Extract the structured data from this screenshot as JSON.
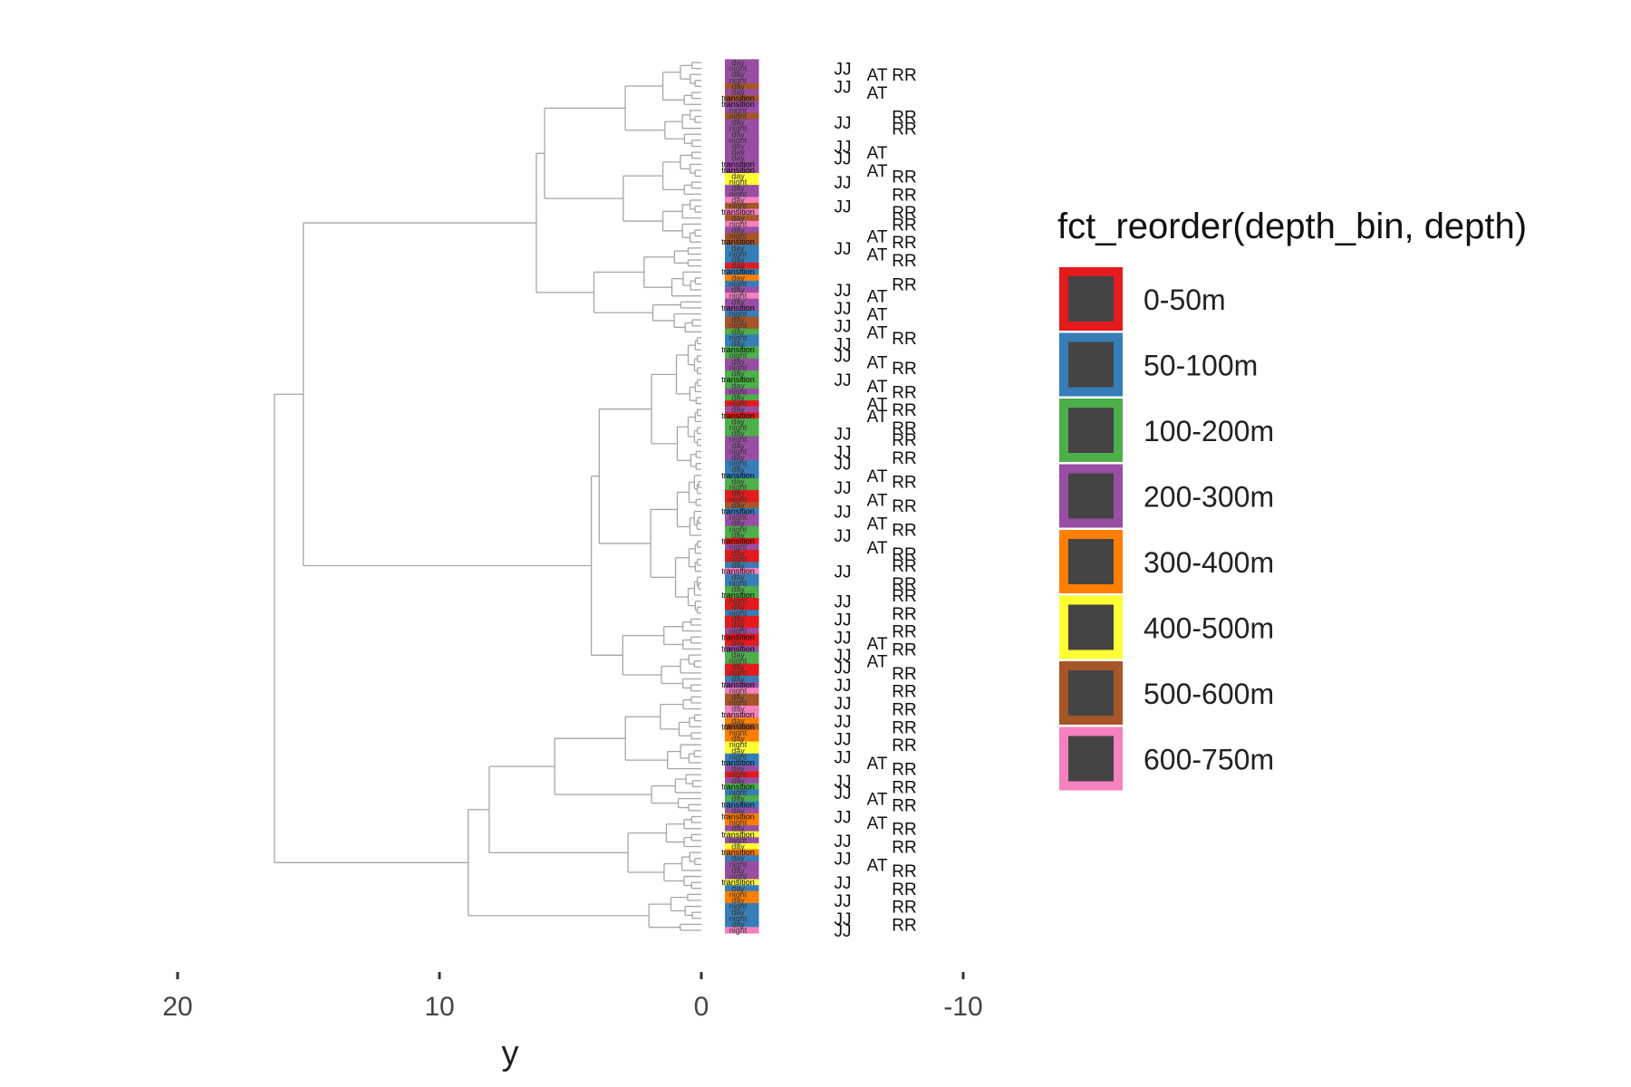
{
  "chart_data": {
    "type": "dendrogram",
    "title": "",
    "xlabel": "y",
    "ylabel": "",
    "xlim": [
      22,
      -11
    ],
    "x_reversed": true,
    "x_ticks": [
      20,
      10,
      0,
      -10
    ],
    "x_tick_labels": [
      "20",
      "10",
      "0",
      "-10"
    ],
    "grid": false,
    "legend": {
      "title": "fct_reorder(depth_bin, depth)",
      "placement": "right",
      "entries": [
        {
          "label": "0-50m",
          "color": "#E41A1C"
        },
        {
          "label": "50-100m",
          "color": "#377EB8"
        },
        {
          "label": "100-200m",
          "color": "#4DAF4A"
        },
        {
          "label": "200-300m",
          "color": "#984EA3"
        },
        {
          "label": "300-400m",
          "color": "#FF7F00"
        },
        {
          "label": "400-500m",
          "color": "#FFFF33"
        },
        {
          "label": "500-600m",
          "color": "#A65628"
        },
        {
          "label": "600-750m",
          "color": "#F781BF"
        }
      ],
      "fill_color": "#444444"
    },
    "branch_color": "#a6a6a6",
    "leaf_count": 146,
    "merge_heights": {
      "root": 16.3,
      "upper": 15.2,
      "top_cluster": 6.3,
      "mid_cluster": 4.0,
      "lower": 8.9,
      "lower_a": 8.1,
      "lower_b": 5.6
    },
    "leaf_depth_bins": [
      "200-300m",
      "200-300m",
      "200-300m",
      "200-300m",
      "500-600m",
      "200-300m",
      "500-600m",
      "200-300m",
      "200-300m",
      "500-600m",
      "200-300m",
      "200-300m",
      "200-300m",
      "200-300m",
      "200-300m",
      "200-300m",
      "200-300m",
      "200-300m",
      "200-300m",
      "400-500m",
      "400-500m",
      "200-300m",
      "200-300m",
      "600-750m",
      "500-600m",
      "600-750m",
      "500-600m",
      "600-750m",
      "200-300m",
      "500-600m",
      "500-600m",
      "50-100m",
      "50-100m",
      "50-100m",
      "0-50m",
      "50-100m",
      "300-400m",
      "50-100m",
      "200-300m",
      "600-750m",
      "200-300m",
      "200-300m",
      "50-100m",
      "500-600m",
      "500-600m",
      "100-200m",
      "50-100m",
      "50-100m",
      "100-200m",
      "100-200m",
      "200-300m",
      "200-300m",
      "100-200m",
      "100-200m",
      "100-200m",
      "200-300m",
      "100-200m",
      "0-50m",
      "200-300m",
      "0-50m",
      "100-200m",
      "100-200m",
      "100-200m",
      "200-300m",
      "200-300m",
      "200-300m",
      "200-300m",
      "50-100m",
      "50-100m",
      "50-100m",
      "100-200m",
      "100-200m",
      "0-50m",
      "0-50m",
      "500-600m",
      "50-100m",
      "200-300m",
      "200-300m",
      "100-200m",
      "100-200m",
      "0-50m",
      "200-300m",
      "0-50m",
      "0-50m",
      "50-100m",
      "600-750m",
      "50-100m",
      "50-100m",
      "100-200m",
      "100-200m",
      "0-50m",
      "0-50m",
      "50-100m",
      "0-50m",
      "0-50m",
      "200-300m",
      "0-50m",
      "0-50m",
      "200-300m",
      "100-200m",
      "100-200m",
      "0-50m",
      "0-50m",
      "50-100m",
      "200-300m",
      "600-750m",
      "500-600m",
      "500-600m",
      "600-750m",
      "600-750m",
      "300-400m",
      "500-600m",
      "300-400m",
      "300-400m",
      "400-500m",
      "400-500m",
      "50-100m",
      "50-100m",
      "200-300m",
      "0-50m",
      "200-300m",
      "100-200m",
      "50-100m",
      "100-200m",
      "50-100m",
      "200-300m",
      "300-400m",
      "300-400m",
      "200-300m",
      "400-500m",
      "200-300m",
      "400-500m",
      "300-400m",
      "50-100m",
      "200-300m",
      "200-300m",
      "200-300m",
      "400-500m",
      "50-100m",
      "300-400m",
      "300-400m",
      "50-100m",
      "50-100m",
      "50-100m",
      "50-100m",
      "600-750m"
    ],
    "leaf_time_labels": [
      "day",
      "night",
      "day",
      "night",
      "day",
      "day",
      "transition",
      "transition",
      "night",
      "night",
      "day",
      "night",
      "day",
      "night",
      "day",
      "day",
      "day",
      "transition",
      "transition",
      "day",
      "night",
      "day",
      "night",
      "day",
      "night",
      "transition",
      "day",
      "night",
      "day",
      "night",
      "transition",
      "day",
      "night",
      "day",
      "day",
      "transition",
      "day",
      "night",
      "day",
      "night",
      "day",
      "transition",
      "night",
      "day",
      "night",
      "day",
      "night",
      "day",
      "transition",
      "night",
      "day",
      "night",
      "day",
      "transition",
      "day",
      "night",
      "day",
      "night",
      "day",
      "transition",
      "day",
      "night",
      "day",
      "night",
      "day",
      "night",
      "day",
      "night",
      "day",
      "transition",
      "day",
      "night",
      "day",
      "night",
      "day",
      "transition",
      "night",
      "day",
      "night",
      "day",
      "transition",
      "night",
      "day",
      "night",
      "day",
      "transition",
      "day",
      "night",
      "day",
      "transition",
      "night",
      "day",
      "night",
      "day",
      "day",
      "night",
      "transition",
      "day",
      "transition",
      "day",
      "night",
      "day",
      "night",
      "day",
      "transition",
      "night",
      "day",
      "night",
      "day",
      "transition",
      "day",
      "transition",
      "night",
      "day",
      "night",
      "day",
      "night",
      "transition",
      "day",
      "night",
      "day",
      "transition",
      "night",
      "day",
      "transition",
      "day",
      "transition",
      "night",
      "day",
      "transition",
      "night",
      "day",
      "transition",
      "day",
      "night",
      "day",
      "night",
      "transition",
      "day",
      "night",
      "day",
      "night",
      "day",
      "night",
      "day",
      "night"
    ],
    "initials_annotations": [
      {
        "row": 1,
        "text": "JJ",
        "col": 0
      },
      {
        "row": 2,
        "text": "AT",
        "col": 1
      },
      {
        "row": 2,
        "text": "RR",
        "col": 2
      },
      {
        "row": 4,
        "text": "JJ",
        "col": 0
      },
      {
        "row": 5,
        "text": "AT",
        "col": 1
      },
      {
        "row": 9,
        "text": "RR",
        "col": 2
      },
      {
        "row": 10,
        "text": "JJ",
        "col": 0
      },
      {
        "row": 11,
        "text": "RR",
        "col": 2
      },
      {
        "row": 14,
        "text": "JJ",
        "col": 0
      },
      {
        "row": 15,
        "text": "AT",
        "col": 1
      },
      {
        "row": 16,
        "text": "JJ",
        "col": 0
      },
      {
        "row": 18,
        "text": "AT",
        "col": 1
      },
      {
        "row": 19,
        "text": "RR",
        "col": 2
      },
      {
        "row": 20,
        "text": "JJ",
        "col": 0
      },
      {
        "row": 22,
        "text": "RR",
        "col": 2
      },
      {
        "row": 24,
        "text": "JJ",
        "col": 0
      },
      {
        "row": 25,
        "text": "RR",
        "col": 2
      },
      {
        "row": 27,
        "text": "RR",
        "col": 2
      },
      {
        "row": 29,
        "text": "AT",
        "col": 1
      },
      {
        "row": 30,
        "text": "RR",
        "col": 2
      },
      {
        "row": 31,
        "text": "JJ",
        "col": 0
      },
      {
        "row": 32,
        "text": "AT",
        "col": 1
      },
      {
        "row": 33,
        "text": "RR",
        "col": 2
      },
      {
        "row": 37,
        "text": "RR",
        "col": 2
      },
      {
        "row": 38,
        "text": "JJ",
        "col": 0
      },
      {
        "row": 39,
        "text": "AT",
        "col": 1
      },
      {
        "row": 41,
        "text": "JJ",
        "col": 0
      },
      {
        "row": 42,
        "text": "AT",
        "col": 1
      },
      {
        "row": 44,
        "text": "JJ",
        "col": 0
      },
      {
        "row": 45,
        "text": "AT",
        "col": 1
      },
      {
        "row": 46,
        "text": "RR",
        "col": 2
      },
      {
        "row": 47,
        "text": "JJ",
        "col": 0
      },
      {
        "row": 49,
        "text": "JJ",
        "col": 0
      },
      {
        "row": 50,
        "text": "AT",
        "col": 1
      },
      {
        "row": 51,
        "text": "RR",
        "col": 2
      },
      {
        "row": 53,
        "text": "JJ",
        "col": 0
      },
      {
        "row": 54,
        "text": "AT",
        "col": 1
      },
      {
        "row": 55,
        "text": "RR",
        "col": 2
      },
      {
        "row": 57,
        "text": "AT",
        "col": 1
      },
      {
        "row": 58,
        "text": "RR",
        "col": 2
      },
      {
        "row": 59,
        "text": "AT",
        "col": 1
      },
      {
        "row": 61,
        "text": "RR",
        "col": 2
      },
      {
        "row": 62,
        "text": "JJ",
        "col": 0
      },
      {
        "row": 63,
        "text": "RR",
        "col": 2
      },
      {
        "row": 65,
        "text": "JJ",
        "col": 0
      },
      {
        "row": 66,
        "text": "RR",
        "col": 2
      },
      {
        "row": 67,
        "text": "JJ",
        "col": 0
      },
      {
        "row": 69,
        "text": "AT",
        "col": 1
      },
      {
        "row": 70,
        "text": "RR",
        "col": 2
      },
      {
        "row": 71,
        "text": "JJ",
        "col": 0
      },
      {
        "row": 73,
        "text": "AT",
        "col": 1
      },
      {
        "row": 74,
        "text": "RR",
        "col": 2
      },
      {
        "row": 75,
        "text": "JJ",
        "col": 0
      },
      {
        "row": 77,
        "text": "AT",
        "col": 1
      },
      {
        "row": 78,
        "text": "RR",
        "col": 2
      },
      {
        "row": 79,
        "text": "JJ",
        "col": 0
      },
      {
        "row": 81,
        "text": "AT",
        "col": 1
      },
      {
        "row": 82,
        "text": "RR",
        "col": 2
      },
      {
        "row": 84,
        "text": "RR",
        "col": 2
      },
      {
        "row": 85,
        "text": "JJ",
        "col": 0
      },
      {
        "row": 87,
        "text": "RR",
        "col": 2
      },
      {
        "row": 89,
        "text": "RR",
        "col": 2
      },
      {
        "row": 90,
        "text": "JJ",
        "col": 0
      },
      {
        "row": 92,
        "text": "RR",
        "col": 2
      },
      {
        "row": 93,
        "text": "JJ",
        "col": 0
      },
      {
        "row": 95,
        "text": "RR",
        "col": 2
      },
      {
        "row": 96,
        "text": "JJ",
        "col": 0
      },
      {
        "row": 97,
        "text": "AT",
        "col": 1
      },
      {
        "row": 98,
        "text": "RR",
        "col": 2
      },
      {
        "row": 99,
        "text": "JJ",
        "col": 0
      },
      {
        "row": 100,
        "text": "AT",
        "col": 1
      },
      {
        "row": 101,
        "text": "JJ",
        "col": 0
      },
      {
        "row": 102,
        "text": "RR",
        "col": 2
      },
      {
        "row": 104,
        "text": "JJ",
        "col": 0
      },
      {
        "row": 105,
        "text": "RR",
        "col": 2
      },
      {
        "row": 107,
        "text": "JJ",
        "col": 0
      },
      {
        "row": 108,
        "text": "RR",
        "col": 2
      },
      {
        "row": 110,
        "text": "JJ",
        "col": 0
      },
      {
        "row": 111,
        "text": "RR",
        "col": 2
      },
      {
        "row": 113,
        "text": "JJ",
        "col": 0
      },
      {
        "row": 114,
        "text": "RR",
        "col": 2
      },
      {
        "row": 116,
        "text": "JJ",
        "col": 0
      },
      {
        "row": 117,
        "text": "AT",
        "col": 1
      },
      {
        "row": 118,
        "text": "RR",
        "col": 2
      },
      {
        "row": 120,
        "text": "JJ",
        "col": 0
      },
      {
        "row": 121,
        "text": "RR",
        "col": 2
      },
      {
        "row": 122,
        "text": "JJ",
        "col": 0
      },
      {
        "row": 123,
        "text": "AT",
        "col": 1
      },
      {
        "row": 124,
        "text": "RR",
        "col": 2
      },
      {
        "row": 126,
        "text": "JJ",
        "col": 0
      },
      {
        "row": 127,
        "text": "AT",
        "col": 1
      },
      {
        "row": 128,
        "text": "RR",
        "col": 2
      },
      {
        "row": 130,
        "text": "JJ",
        "col": 0
      },
      {
        "row": 131,
        "text": "RR",
        "col": 2
      },
      {
        "row": 133,
        "text": "JJ",
        "col": 0
      },
      {
        "row": 134,
        "text": "AT",
        "col": 1
      },
      {
        "row": 135,
        "text": "RR",
        "col": 2
      },
      {
        "row": 137,
        "text": "JJ",
        "col": 0
      },
      {
        "row": 138,
        "text": "RR",
        "col": 2
      },
      {
        "row": 140,
        "text": "JJ",
        "col": 0
      },
      {
        "row": 141,
        "text": "RR",
        "col": 2
      },
      {
        "row": 143,
        "text": "JJ",
        "col": 0
      },
      {
        "row": 144,
        "text": "RR",
        "col": 2
      },
      {
        "row": 145,
        "text": "JJ",
        "col": 0
      }
    ]
  }
}
